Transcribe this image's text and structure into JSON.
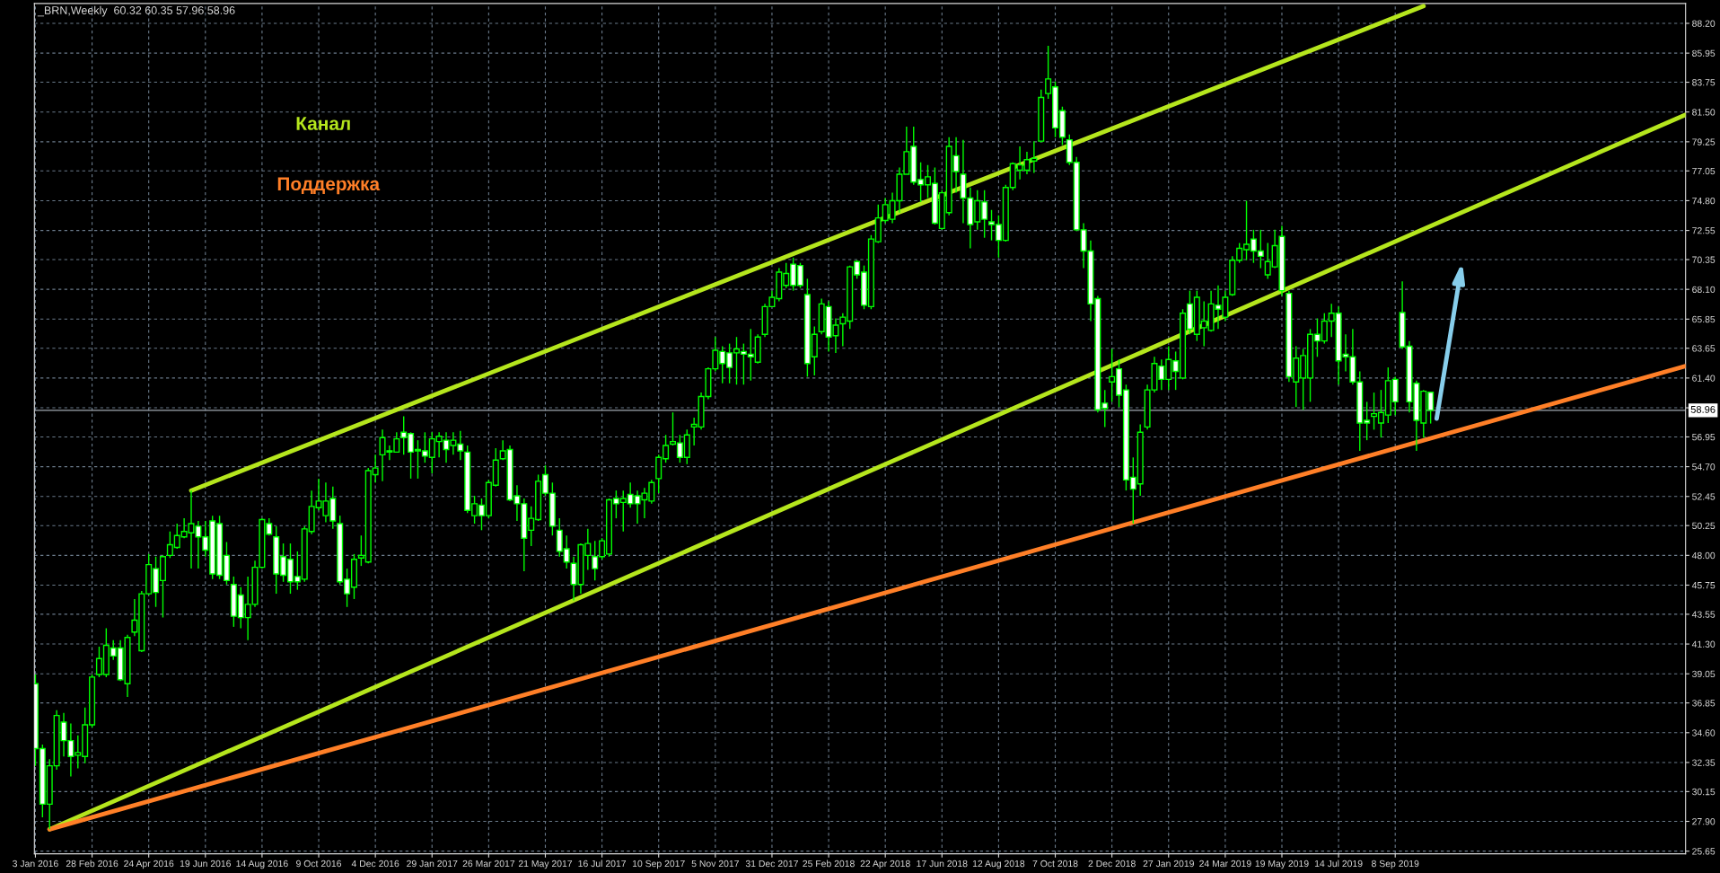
{
  "chart_data": {
    "type": "candlestick",
    "color": "#00ff00",
    "annotations": [
      "_BRN,Weekly  60.32 60.35 57.96 58.96"
    ],
    "x": [
      "2016-01-03",
      "2016-01-10",
      "2016-01-17",
      "2016-01-24",
      "2016-01-31",
      "2016-02-07",
      "2016-02-14",
      "2016-02-21",
      "2016-02-28",
      "2016-03-06",
      "2016-03-13",
      "2016-03-20",
      "2016-03-27",
      "2016-04-03",
      "2016-04-10",
      "2016-04-17",
      "2016-04-24",
      "2016-05-01",
      "2016-05-08",
      "2016-05-15",
      "2016-05-22",
      "2016-05-29",
      "2016-06-05",
      "2016-06-12",
      "2016-06-19",
      "2016-06-26",
      "2016-07-03",
      "2016-07-10",
      "2016-07-17",
      "2016-07-24",
      "2016-07-31",
      "2016-08-07",
      "2016-08-14",
      "2016-08-21",
      "2016-08-28",
      "2016-09-04",
      "2016-09-11",
      "2016-09-18",
      "2016-09-25",
      "2016-10-02",
      "2016-10-09",
      "2016-10-16",
      "2016-10-23",
      "2016-10-30",
      "2016-11-06",
      "2016-11-13",
      "2016-11-20",
      "2016-11-27",
      "2016-12-04",
      "2016-12-11",
      "2016-12-18",
      "2016-12-25",
      "2017-01-01",
      "2017-01-08",
      "2017-01-15",
      "2017-01-22",
      "2017-01-29",
      "2017-02-05",
      "2017-02-12",
      "2017-02-19",
      "2017-02-26",
      "2017-03-05",
      "2017-03-12",
      "2017-03-19",
      "2017-03-26",
      "2017-04-02",
      "2017-04-09",
      "2017-04-16",
      "2017-04-23",
      "2017-04-30",
      "2017-05-07",
      "2017-05-14",
      "2017-05-21",
      "2017-05-28",
      "2017-06-04",
      "2017-06-11",
      "2017-06-18",
      "2017-06-25",
      "2017-07-02",
      "2017-07-09",
      "2017-07-16",
      "2017-07-23",
      "2017-07-30",
      "2017-08-06",
      "2017-08-13",
      "2017-08-20",
      "2017-08-27",
      "2017-09-03",
      "2017-09-10",
      "2017-09-17",
      "2017-09-24",
      "2017-10-01",
      "2017-10-08",
      "2017-10-15",
      "2017-10-22",
      "2017-10-29",
      "2017-11-05",
      "2017-11-12",
      "2017-11-19",
      "2017-11-26",
      "2017-12-03",
      "2017-12-10",
      "2017-12-17",
      "2017-12-24",
      "2017-12-31",
      "2018-01-07",
      "2018-01-14",
      "2018-01-21",
      "2018-01-28",
      "2018-02-04",
      "2018-02-11",
      "2018-02-18",
      "2018-02-25",
      "2018-03-04",
      "2018-03-11",
      "2018-03-18",
      "2018-03-25",
      "2018-04-01",
      "2018-04-08",
      "2018-04-15",
      "2018-04-22",
      "2018-04-29",
      "2018-05-06",
      "2018-05-13",
      "2018-05-20",
      "2018-05-27",
      "2018-06-03",
      "2018-06-10",
      "2018-06-17",
      "2018-06-24",
      "2018-07-01",
      "2018-07-08",
      "2018-07-15",
      "2018-07-22",
      "2018-07-29",
      "2018-08-05",
      "2018-08-12",
      "2018-08-19",
      "2018-08-26",
      "2018-09-02",
      "2018-09-09",
      "2018-09-16",
      "2018-09-23",
      "2018-09-30",
      "2018-10-07",
      "2018-10-14",
      "2018-10-21",
      "2018-10-28",
      "2018-11-04",
      "2018-11-11",
      "2018-11-18",
      "2018-11-25",
      "2018-12-02",
      "2018-12-09",
      "2018-12-16",
      "2018-12-23",
      "2018-12-30",
      "2019-01-06",
      "2019-01-13",
      "2019-01-20",
      "2019-01-27",
      "2019-02-03",
      "2019-02-10",
      "2019-02-17",
      "2019-02-24",
      "2019-03-03",
      "2019-03-10",
      "2019-03-17",
      "2019-03-24",
      "2019-03-31",
      "2019-04-07",
      "2019-04-14",
      "2019-04-21",
      "2019-04-28",
      "2019-05-05",
      "2019-05-12",
      "2019-05-19",
      "2019-05-26",
      "2019-06-02",
      "2019-06-09",
      "2019-06-16",
      "2019-06-23",
      "2019-06-30",
      "2019-07-07",
      "2019-07-14",
      "2019-07-21",
      "2019-07-28",
      "2019-08-04",
      "2019-08-11",
      "2019-08-18",
      "2019-08-25",
      "2019-09-01",
      "2019-09-08",
      "2019-09-15",
      "2019-09-22",
      "2019-09-29",
      "2019-10-06",
      "2019-10-13"
    ],
    "ohlc": [
      [
        38.3,
        39.0,
        32.1,
        33.4
      ],
      [
        33.4,
        33.7,
        28.2,
        29.2
      ],
      [
        29.2,
        32.6,
        27.3,
        32.1
      ],
      [
        32.1,
        36.3,
        31.8,
        35.9
      ],
      [
        35.4,
        36.1,
        32.8,
        34.0
      ],
      [
        34.0,
        35.3,
        31.3,
        32.8
      ],
      [
        32.9,
        34.4,
        31.9,
        33.1
      ],
      [
        32.8,
        36.5,
        32.3,
        35.2
      ],
      [
        35.2,
        39.0,
        35.0,
        38.8
      ],
      [
        39.0,
        41.1,
        38.8,
        40.2
      ],
      [
        39.0,
        42.5,
        38.8,
        41.2
      ],
      [
        41.0,
        41.6,
        40.1,
        40.4
      ],
      [
        41.0,
        41.6,
        38.5,
        38.6
      ],
      [
        38.3,
        42.0,
        37.3,
        41.8
      ],
      [
        42.2,
        44.7,
        41.9,
        43.1
      ],
      [
        40.8,
        45.3,
        40.7,
        45.1
      ],
      [
        45.1,
        48.1,
        45.0,
        47.3
      ],
      [
        47.0,
        47.9,
        44.1,
        45.2
      ],
      [
        46.1,
        48.0,
        43.3,
        47.9
      ],
      [
        48.0,
        49.8,
        47.8,
        48.8
      ],
      [
        48.6,
        50.4,
        48.5,
        49.5
      ],
      [
        49.4,
        50.8,
        49.3,
        49.8
      ],
      [
        49.7,
        52.9,
        47.0,
        50.4
      ],
      [
        50.2,
        50.6,
        47.0,
        49.4
      ],
      [
        49.4,
        50.6,
        47.9,
        48.4
      ],
      [
        50.6,
        51.0,
        46.2,
        46.6
      ],
      [
        50.4,
        51.0,
        46.2,
        46.5
      ],
      [
        48.0,
        49.0,
        45.8,
        46.1
      ],
      [
        45.8,
        46.4,
        42.6,
        43.4
      ],
      [
        45.0,
        45.6,
        42.5,
        43.3
      ],
      [
        43.3,
        46.4,
        41.6,
        44.3
      ],
      [
        44.3,
        47.6,
        44.1,
        47.1
      ],
      [
        47.1,
        50.8,
        47.0,
        50.7
      ],
      [
        50.4,
        50.8,
        49.5,
        49.6
      ],
      [
        49.4,
        50.2,
        45.1,
        46.6
      ],
      [
        47.9,
        48.9,
        46.0,
        46.5
      ],
      [
        47.7,
        48.9,
        45.1,
        46.0
      ],
      [
        46.4,
        48.3,
        45.4,
        46.0
      ],
      [
        46.2,
        50.2,
        46.0,
        50.0
      ],
      [
        49.8,
        52.9,
        49.6,
        51.7
      ],
      [
        51.6,
        53.8,
        51.4,
        52.1
      ],
      [
        51.0,
        53.5,
        50.5,
        52.1
      ],
      [
        52.3,
        53.2,
        50.0,
        50.6
      ],
      [
        50.4,
        51.0,
        45.8,
        46.0
      ],
      [
        46.2,
        47.0,
        44.1,
        45.1
      ],
      [
        45.6,
        48.1,
        44.7,
        47.7
      ],
      [
        47.8,
        49.5,
        47.2,
        48.0
      ],
      [
        47.5,
        54.6,
        47.4,
        54.4
      ],
      [
        54.1,
        55.6,
        53.5,
        54.6
      ],
      [
        55.6,
        57.5,
        53.6,
        56.9
      ],
      [
        55.9,
        56.3,
        55.2,
        55.8
      ],
      [
        55.8,
        57.3,
        55.8,
        56.8
      ],
      [
        57.3,
        58.5,
        55.6,
        56.9
      ],
      [
        57.2,
        57.3,
        53.8,
        55.8
      ],
      [
        55.9,
        56.7,
        53.8,
        56.0
      ],
      [
        55.9,
        57.3,
        55.0,
        55.5
      ],
      [
        55.4,
        57.3,
        54.2,
        56.8
      ],
      [
        56.6,
        57.3,
        55.4,
        57.0
      ],
      [
        56.7,
        57.3,
        55.0,
        56.0
      ],
      [
        56.3,
        57.3,
        55.6,
        56.7
      ],
      [
        56.4,
        57.4,
        55.2,
        55.9
      ],
      [
        55.8,
        56.3,
        51.2,
        51.4
      ],
      [
        51.0,
        52.5,
        50.4,
        51.9
      ],
      [
        51.8,
        52.3,
        49.9,
        51.0
      ],
      [
        51.0,
        53.7,
        50.8,
        53.5
      ],
      [
        53.3,
        56.1,
        53.2,
        55.2
      ],
      [
        55.3,
        56.7,
        55.2,
        55.9
      ],
      [
        56.0,
        56.3,
        52.1,
        52.2
      ],
      [
        52.5,
        53.3,
        50.6,
        51.9
      ],
      [
        51.9,
        52.3,
        46.8,
        49.3
      ],
      [
        49.9,
        51.7,
        48.7,
        50.8
      ],
      [
        50.7,
        54.1,
        50.6,
        53.6
      ],
      [
        54.1,
        54.8,
        52.5,
        52.7
      ],
      [
        52.7,
        53.5,
        49.5,
        50.2
      ],
      [
        49.9,
        50.8,
        47.9,
        48.3
      ],
      [
        48.5,
        49.5,
        47.0,
        47.5
      ],
      [
        47.4,
        47.9,
        44.6,
        45.8
      ],
      [
        45.8,
        48.9,
        45.1,
        48.8
      ],
      [
        48.0,
        50.0,
        46.9,
        48.9
      ],
      [
        47.9,
        49.1,
        46.1,
        47.0
      ],
      [
        47.9,
        49.3,
        47.7,
        49.1
      ],
      [
        48.1,
        52.3,
        47.9,
        52.2
      ],
      [
        52.3,
        52.9,
        50.8,
        51.9
      ],
      [
        52.0,
        52.9,
        49.8,
        52.3
      ],
      [
        52.6,
        53.5,
        51.6,
        51.9
      ],
      [
        52.5,
        52.9,
        50.4,
        51.9
      ],
      [
        52.2,
        53.1,
        50.8,
        52.7
      ],
      [
        52.1,
        53.7,
        51.9,
        53.5
      ],
      [
        53.8,
        55.6,
        52.7,
        55.4
      ],
      [
        55.3,
        57.1,
        55.0,
        56.3
      ],
      [
        56.4,
        58.8,
        56.3,
        56.6
      ],
      [
        56.5,
        57.1,
        55.0,
        55.4
      ],
      [
        55.4,
        57.5,
        54.9,
        57.1
      ],
      [
        57.7,
        58.4,
        56.3,
        57.9
      ],
      [
        57.7,
        60.3,
        57.5,
        60.0
      ],
      [
        60.0,
        62.2,
        59.8,
        62.1
      ],
      [
        62.1,
        64.5,
        61.9,
        63.5
      ],
      [
        63.4,
        63.8,
        61.0,
        62.5
      ],
      [
        63.3,
        64.0,
        61.0,
        62.2
      ],
      [
        63.3,
        64.5,
        60.9,
        63.6
      ],
      [
        63.4,
        64.0,
        60.9,
        63.2
      ],
      [
        63.2,
        65.1,
        61.2,
        63.0
      ],
      [
        62.6,
        64.7,
        62.5,
        64.5
      ],
      [
        64.7,
        67.0,
        64.5,
        66.8
      ],
      [
        66.8,
        68.0,
        66.8,
        67.5
      ],
      [
        67.4,
        69.7,
        67.2,
        69.4
      ],
      [
        68.4,
        70.1,
        68.2,
        69.3
      ],
      [
        70.0,
        70.5,
        68.0,
        68.4
      ],
      [
        69.9,
        70.1,
        68.2,
        68.4
      ],
      [
        67.7,
        68.9,
        61.5,
        62.5
      ],
      [
        63.0,
        65.3,
        61.6,
        64.7
      ],
      [
        64.9,
        67.4,
        64.7,
        67.0
      ],
      [
        66.8,
        67.2,
        63.4,
        64.5
      ],
      [
        64.6,
        65.9,
        63.3,
        65.4
      ],
      [
        65.5,
        66.3,
        63.8,
        66.0
      ],
      [
        65.7,
        69.9,
        65.1,
        69.8
      ],
      [
        70.2,
        70.3,
        68.9,
        69.2
      ],
      [
        69.4,
        69.9,
        66.6,
        66.9
      ],
      [
        66.8,
        72.2,
        66.6,
        71.9
      ],
      [
        71.7,
        74.5,
        71.6,
        73.5
      ],
      [
        73.3,
        75.0,
        73.1,
        74.5
      ],
      [
        73.4,
        75.4,
        73.1,
        74.8
      ],
      [
        74.8,
        77.3,
        73.9,
        76.8
      ],
      [
        76.8,
        80.4,
        76.8,
        78.5
      ],
      [
        78.9,
        80.4,
        76.0,
        76.2
      ],
      [
        76.4,
        77.7,
        74.7,
        76.0
      ],
      [
        76.0,
        77.5,
        75.0,
        76.6
      ],
      [
        76.1,
        77.3,
        73.0,
        73.1
      ],
      [
        72.7,
        75.6,
        72.6,
        75.4
      ],
      [
        73.9,
        79.6,
        73.7,
        78.9
      ],
      [
        78.2,
        79.6,
        75.4,
        77.0
      ],
      [
        76.8,
        79.4,
        73.1,
        75.0
      ],
      [
        75.0,
        75.8,
        71.2,
        73.0
      ],
      [
        73.2,
        75.6,
        72.6,
        74.8
      ],
      [
        74.7,
        75.6,
        72.0,
        73.4
      ],
      [
        73.2,
        74.1,
        71.8,
        73.0
      ],
      [
        73.0,
        73.7,
        70.5,
        71.8
      ],
      [
        71.8,
        76.0,
        71.7,
        75.8
      ],
      [
        75.8,
        77.7,
        75.6,
        77.6
      ],
      [
        77.1,
        78.9,
        76.4,
        77.5
      ],
      [
        77.1,
        78.5,
        76.8,
        77.9
      ],
      [
        77.8,
        79.3,
        76.9,
        78.0
      ],
      [
        79.3,
        83.2,
        79.2,
        82.6
      ],
      [
        82.9,
        86.5,
        82.5,
        84.0
      ],
      [
        83.4,
        83.8,
        79.6,
        80.3
      ],
      [
        81.6,
        81.9,
        79.0,
        79.6
      ],
      [
        79.4,
        79.8,
        77.5,
        77.7
      ],
      [
        77.7,
        78.1,
        72.5,
        72.6
      ],
      [
        72.6,
        73.1,
        69.7,
        71.0
      ],
      [
        71.0,
        71.8,
        65.7,
        67.0
      ],
      [
        67.4,
        67.6,
        58.8,
        59.0
      ],
      [
        59.5,
        60.5,
        57.7,
        59.1
      ],
      [
        61.1,
        63.6,
        59.6,
        61.5
      ],
      [
        62.1,
        62.8,
        59.2,
        60.1
      ],
      [
        60.5,
        60.9,
        52.9,
        53.7
      ],
      [
        53.9,
        55.4,
        50.4,
        53.0
      ],
      [
        53.4,
        57.9,
        52.5,
        57.3
      ],
      [
        57.7,
        60.9,
        57.5,
        60.5
      ],
      [
        60.5,
        63.0,
        60.3,
        62.5
      ],
      [
        62.3,
        62.8,
        60.5,
        61.3
      ],
      [
        61.3,
        63.8,
        60.5,
        62.8
      ],
      [
        62.7,
        63.4,
        60.5,
        61.9
      ],
      [
        61.4,
        66.6,
        61.3,
        66.3
      ],
      [
        67.0,
        68.0,
        64.7,
        65.1
      ],
      [
        64.7,
        68.0,
        64.2,
        67.5
      ],
      [
        65.2,
        67.2,
        63.8,
        65.7
      ],
      [
        65.0,
        68.0,
        64.9,
        67.0
      ],
      [
        66.9,
        68.4,
        65.1,
        66.6
      ],
      [
        66.0,
        68.0,
        65.7,
        67.5
      ],
      [
        67.7,
        70.6,
        67.6,
        70.3
      ],
      [
        70.3,
        71.6,
        70.1,
        71.2
      ],
      [
        71.1,
        74.8,
        70.3,
        71.5
      ],
      [
        71.9,
        72.6,
        70.1,
        71.0
      ],
      [
        71.0,
        72.6,
        69.7,
        70.6
      ],
      [
        69.2,
        71.6,
        68.9,
        70.2
      ],
      [
        69.8,
        72.6,
        69.7,
        71.4
      ],
      [
        72.1,
        72.9,
        67.6,
        68.0
      ],
      [
        67.8,
        68.0,
        61.1,
        61.5
      ],
      [
        61.1,
        63.8,
        59.2,
        62.9
      ],
      [
        61.4,
        63.6,
        59.0,
        63.1
      ],
      [
        61.4,
        65.1,
        59.6,
        64.7
      ],
      [
        64.7,
        65.9,
        63.0,
        64.2
      ],
      [
        64.2,
        66.3,
        64.0,
        65.7
      ],
      [
        65.7,
        67.0,
        64.5,
        66.3
      ],
      [
        66.3,
        66.8,
        60.9,
        62.7
      ],
      [
        63.2,
        64.7,
        61.9,
        63.0
      ],
      [
        63.0,
        65.1,
        60.9,
        61.1
      ],
      [
        61.1,
        61.9,
        55.9,
        58.0
      ],
      [
        58.2,
        59.6,
        56.7,
        58.0
      ],
      [
        58.5,
        60.3,
        57.5,
        58.7
      ],
      [
        58.0,
        60.5,
        56.9,
        58.8
      ],
      [
        58.6,
        62.2,
        58.0,
        61.2
      ],
      [
        61.3,
        61.5,
        58.6,
        59.6
      ],
      [
        66.35,
        68.7,
        63.6,
        63.75
      ],
      [
        63.8,
        64.2,
        58.8,
        59.6
      ],
      [
        61.0,
        61.2,
        55.9,
        58.2
      ],
      [
        58.0,
        60.5,
        56.9,
        60.4
      ],
      [
        60.32,
        60.35,
        57.96,
        58.96
      ]
    ],
    "series": [
      {
        "type": "line",
        "name": "Канал",
        "color": "#b5e61d",
        "x": [
          "2016-06-05",
          "2019-10-06"
        ],
        "values": [
          52.9,
          89.5
        ]
      },
      {
        "type": "line",
        "color": "#b5e61d",
        "x": [
          "2016-01-17",
          "2020-06-21"
        ],
        "values": [
          27.3,
          81.3
        ]
      },
      {
        "type": "line",
        "name": "Поддержка",
        "color": "#ff7f27",
        "x": [
          "2016-01-17",
          "2020-06-21"
        ],
        "values": [
          27.3,
          62.3
        ]
      }
    ],
    "xlim": [
      "2016-01-02",
      "2020-06-21"
    ],
    "xticks": [
      {
        "value": "2016-01-03",
        "label": "3 Jan 2016"
      },
      {
        "value": "2016-02-28",
        "label": "28 Feb 2016"
      },
      {
        "value": "2016-04-24",
        "label": "24 Apr 2016"
      },
      {
        "value": "2016-06-19",
        "label": "19 Jun 2016"
      },
      {
        "value": "2016-08-14",
        "label": "14 Aug 2016"
      },
      {
        "value": "2016-10-09",
        "label": "9 Oct 2016"
      },
      {
        "value": "2016-12-04",
        "label": "4 Dec 2016"
      },
      {
        "value": "2017-01-29",
        "label": "29 Jan 2017"
      },
      {
        "value": "2017-03-26",
        "label": "26 Mar 2017"
      },
      {
        "value": "2017-05-21",
        "label": "21 May 2017"
      },
      {
        "value": "2017-07-16",
        "label": "16 Jul 2017"
      },
      {
        "value": "2017-09-10",
        "label": "10 Sep 2017"
      },
      {
        "value": "2017-11-05",
        "label": "5 Nov 2017"
      },
      {
        "value": "2017-12-31",
        "label": "31 Dec 2017"
      },
      {
        "value": "2018-02-25",
        "label": "25 Feb 2018"
      },
      {
        "value": "2018-04-22",
        "label": "22 Apr 2018"
      },
      {
        "value": "2018-06-17",
        "label": "17 Jun 2018"
      },
      {
        "value": "2018-08-12",
        "label": "12 Aug 2018"
      },
      {
        "value": "2018-10-07",
        "label": "7 Oct 2018"
      },
      {
        "value": "2018-12-02",
        "label": "2 Dec 2018"
      },
      {
        "value": "2019-01-27",
        "label": "27 Jan 2019"
      },
      {
        "value": "2019-03-24",
        "label": "24 Mar 2019"
      },
      {
        "value": "2019-05-19",
        "label": "19 May 2019"
      },
      {
        "value": "2019-07-14",
        "label": "14 Jul 2019"
      },
      {
        "value": "2019-09-08",
        "label": "8 Sep 2019"
      }
    ],
    "ylim": [
      25.45,
      89.7
    ],
    "yticks": [
      {
        "value": 25.65,
        "label": "25.65"
      },
      {
        "value": 27.9,
        "label": "27.90"
      },
      {
        "value": 30.15,
        "label": "30.15"
      },
      {
        "value": 32.35,
        "label": "32.35"
      },
      {
        "value": 34.6,
        "label": "34.60"
      },
      {
        "value": 36.85,
        "label": "36.85"
      },
      {
        "value": 39.05,
        "label": "39.05"
      },
      {
        "value": 41.3,
        "label": "41.30"
      },
      {
        "value": 43.55,
        "label": "43.55"
      },
      {
        "value": 45.75,
        "label": "45.75"
      },
      {
        "value": 48.0,
        "label": "48.00"
      },
      {
        "value": 50.25,
        "label": "50.25"
      },
      {
        "value": 52.45,
        "label": "52.45"
      },
      {
        "value": 54.7,
        "label": "54.70"
      },
      {
        "value": 56.95,
        "label": "56.95"
      },
      {
        "value": 59.15,
        "label": null
      },
      {
        "value": 61.4,
        "label": "61.40"
      },
      {
        "value": 63.65,
        "label": "63.65"
      },
      {
        "value": 65.85,
        "label": "65.85"
      },
      {
        "value": 68.1,
        "label": "68.10"
      },
      {
        "value": 70.35,
        "label": "70.35"
      },
      {
        "value": 72.55,
        "label": "72.55"
      },
      {
        "value": 74.8,
        "label": "74.80"
      },
      {
        "value": 77.05,
        "label": "77.05"
      },
      {
        "value": 79.25,
        "label": "79.25"
      },
      {
        "value": 81.5,
        "label": "81.50"
      },
      {
        "value": 83.75,
        "label": "83.75"
      },
      {
        "value": 85.95,
        "label": "85.95"
      },
      {
        "value": 88.2,
        "label": "88.20"
      }
    ],
    "grid": true,
    "ref_lines": [
      {
        "axis": "y",
        "value": 58.96,
        "label": "58.96",
        "color": "#a0a8b0"
      }
    ]
  }
}
